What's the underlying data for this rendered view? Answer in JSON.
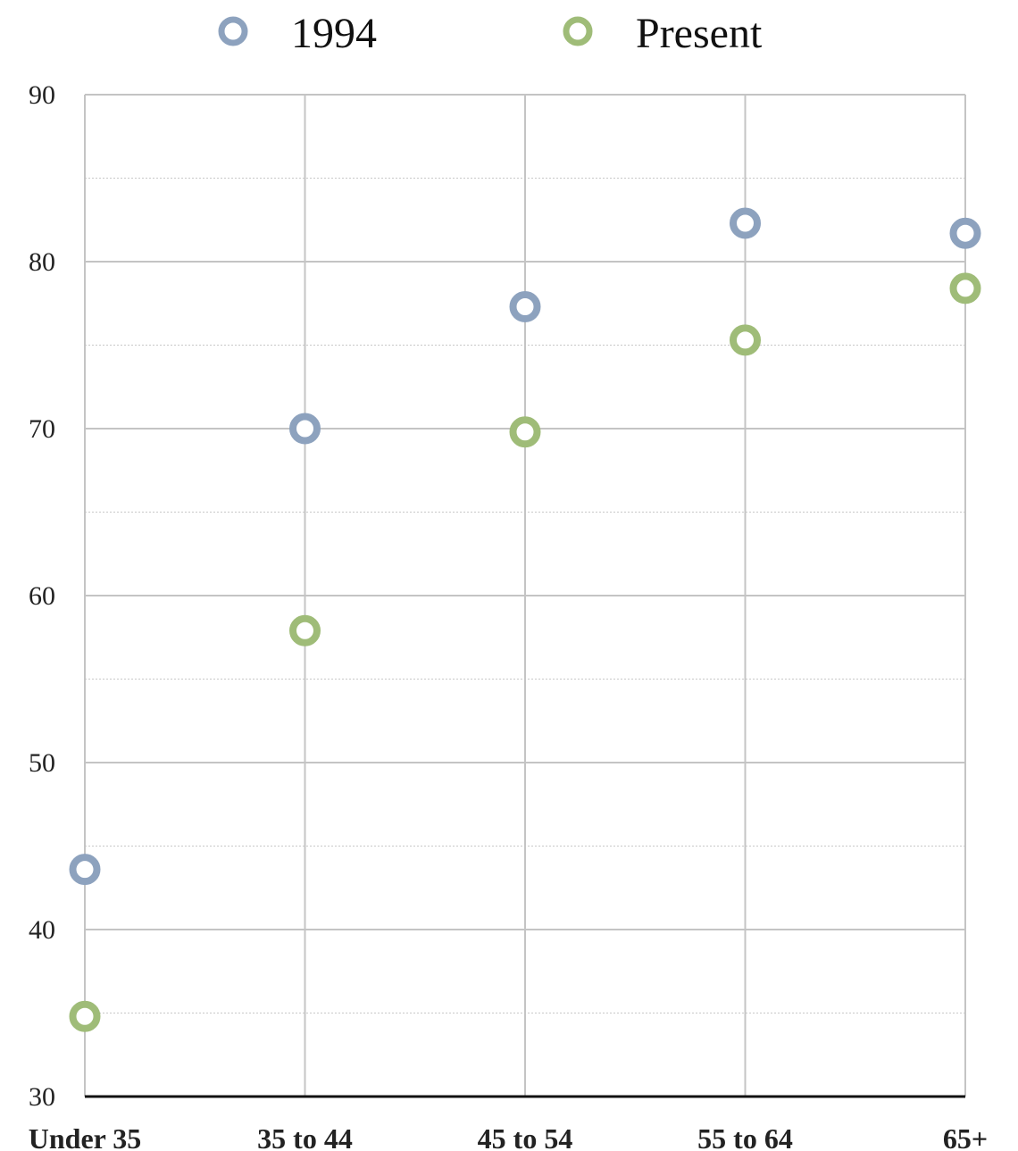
{
  "chart_data": {
    "type": "scatter",
    "title": "",
    "xlabel": "",
    "ylabel": "",
    "categories": [
      "Under 35",
      "35 to 44",
      "45 to 54",
      "55 to 64",
      "65+"
    ],
    "ylim": [
      30,
      90
    ],
    "yticks": [
      30,
      40,
      50,
      60,
      70,
      80,
      90
    ],
    "minor_grid": true,
    "grid": true,
    "legend_position": "top",
    "series": [
      {
        "name": "1994",
        "color": "#8da2be",
        "values": [
          43.6,
          70.0,
          77.3,
          82.3,
          81.7
        ]
      },
      {
        "name": "Present",
        "color": "#9fbc78",
        "values": [
          34.8,
          57.9,
          69.8,
          75.3,
          78.4
        ]
      }
    ]
  }
}
